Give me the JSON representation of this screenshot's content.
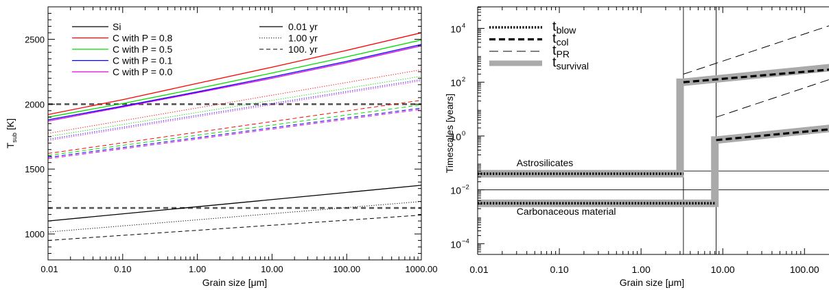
{
  "chart_data": [
    {
      "type": "line",
      "xlabel": "Grain size [μm]",
      "ylabel_main": "T",
      "ylabel_sub": "sub",
      "ylabel_unit": " [K]",
      "x_scale": "log",
      "xlim": [
        0.01,
        1000
      ],
      "ylim": [
        800,
        2750
      ],
      "x_ticks": [
        {
          "v": 0.01,
          "label": "0.01"
        },
        {
          "v": 0.1,
          "label": "0.10"
        },
        {
          "v": 1,
          "label": "1.00"
        },
        {
          "v": 10,
          "label": "10.00"
        },
        {
          "v": 100,
          "label": "100.00"
        },
        {
          "v": 1000,
          "label": "1000.00"
        }
      ],
      "y_ticks": [
        {
          "v": 1000,
          "label": "1000"
        },
        {
          "v": 1500,
          "label": "1500"
        },
        {
          "v": 2000,
          "label": "2000"
        },
        {
          "v": 2500,
          "label": "2500"
        }
      ],
      "legend_materials": [
        {
          "label": "Si",
          "color": "#000000"
        },
        {
          "label": "C with P = 0.8",
          "color": "#ff0000"
        },
        {
          "label": "C with P = 0.5",
          "color": "#00dd00"
        },
        {
          "label": "C with P = 0.1",
          "color": "#0000ff"
        },
        {
          "label": "C with P = 0.0",
          "color": "#dd00dd"
        }
      ],
      "legend_times": [
        {
          "label": "0.01 yr",
          "style": "solid"
        },
        {
          "label": "1.00 yr",
          "style": "dotted"
        },
        {
          "label": "100. yr",
          "style": "dashed"
        }
      ],
      "series": [
        {
          "material": "Si",
          "time": "0.01 yr",
          "color": "#000000",
          "style": "solid",
          "x": [
            0.01,
            1000
          ],
          "y": [
            1100,
            1375
          ]
        },
        {
          "material": "Si",
          "time": "1.00 yr",
          "color": "#000000",
          "style": "dotted",
          "x": [
            0.01,
            1000
          ],
          "y": [
            1015,
            1250
          ]
        },
        {
          "material": "Si",
          "time": "100. yr",
          "color": "#000000",
          "style": "dashed",
          "x": [
            0.01,
            1000
          ],
          "y": [
            950,
            1145
          ]
        },
        {
          "material": "C with P = 0.8",
          "time": "0.01 yr",
          "color": "#ff0000",
          "style": "solid",
          "x": [
            0.01,
            0.1,
            1,
            10,
            100,
            1000
          ],
          "y": [
            1920,
            2035,
            2160,
            2285,
            2415,
            2550
          ]
        },
        {
          "material": "C with P = 0.5",
          "time": "0.01 yr",
          "color": "#00dd00",
          "style": "solid",
          "x": [
            0.01,
            0.1,
            1,
            10,
            100,
            1000
          ],
          "y": [
            1900,
            2005,
            2120,
            2240,
            2365,
            2495
          ]
        },
        {
          "material": "C with P = 0.1",
          "time": "0.01 yr",
          "color": "#0000ff",
          "style": "solid",
          "x": [
            0.01,
            0.1,
            1,
            10,
            100,
            1000
          ],
          "y": [
            1880,
            1985,
            2095,
            2210,
            2330,
            2460
          ]
        },
        {
          "material": "C with P = 0.0",
          "time": "0.01 yr",
          "color": "#dd00dd",
          "style": "solid",
          "x": [
            0.01,
            0.1,
            1,
            10,
            100,
            1000
          ],
          "y": [
            1870,
            1978,
            2088,
            2200,
            2320,
            2450
          ]
        },
        {
          "material": "C with P = 0.8",
          "time": "1.00 yr",
          "color": "#ff0000",
          "style": "dotted",
          "x": [
            0.01,
            1000
          ],
          "y": [
            1775,
            2265
          ]
        },
        {
          "material": "C with P = 0.5",
          "time": "1.00 yr",
          "color": "#00dd00",
          "style": "dotted",
          "x": [
            0.01,
            1000
          ],
          "y": [
            1750,
            2215
          ]
        },
        {
          "material": "C with P = 0.1",
          "time": "1.00 yr",
          "color": "#0000ff",
          "style": "dotted",
          "x": [
            0.01,
            1000
          ],
          "y": [
            1730,
            2190
          ]
        },
        {
          "material": "C with P = 0.0",
          "time": "1.00 yr",
          "color": "#dd00dd",
          "style": "dotted",
          "x": [
            0.01,
            1000
          ],
          "y": [
            1720,
            2180
          ]
        },
        {
          "material": "C with P = 0.8",
          "time": "100. yr",
          "color": "#ff0000",
          "style": "dashed",
          "x": [
            0.01,
            1000
          ],
          "y": [
            1620,
            2030
          ]
        },
        {
          "material": "C with P = 0.5",
          "time": "100. yr",
          "color": "#00dd00",
          "style": "dashed",
          "x": [
            0.01,
            1000
          ],
          "y": [
            1605,
            1995
          ]
        },
        {
          "material": "C with P = 0.1",
          "time": "100. yr",
          "color": "#0000ff",
          "style": "dashed",
          "x": [
            0.01,
            1000
          ],
          "y": [
            1590,
            1970
          ]
        },
        {
          "material": "C with P = 0.0",
          "time": "100. yr",
          "color": "#dd00dd",
          "style": "dashed",
          "x": [
            0.01,
            1000
          ],
          "y": [
            1580,
            1960
          ]
        }
      ],
      "reference_lines": [
        {
          "y": 2000,
          "color": "#555555",
          "style": "thick-dashed"
        },
        {
          "y": 1200,
          "color": "#555555",
          "style": "thick-dashed"
        }
      ]
    },
    {
      "type": "line",
      "xlabel": "Grain size [μm]",
      "ylabel": "Timescales [years]",
      "x_scale": "log",
      "y_scale": "log",
      "xlim": [
        0.01,
        1000
      ],
      "ylim_log10": [
        -4.4,
        4.8
      ],
      "x_ticks": [
        {
          "v": 0.01,
          "label": "0.01"
        },
        {
          "v": 0.1,
          "label": "0.10"
        },
        {
          "v": 1,
          "label": "1.00"
        },
        {
          "v": 10,
          "label": "10.00"
        },
        {
          "v": 100,
          "label": "100.00"
        }
      ],
      "y_ticks": [
        {
          "exp": -4,
          "base": "10",
          "sup": "−4"
        },
        {
          "exp": -2,
          "base": "10",
          "sup": "−2"
        },
        {
          "exp": 0,
          "base": "10",
          "sup": "0"
        },
        {
          "exp": 2,
          "base": "10",
          "sup": "2"
        },
        {
          "exp": 4,
          "base": "10",
          "sup": "4"
        }
      ],
      "legend": [
        {
          "main": "t",
          "sub": "blow",
          "style": "dotted-thick"
        },
        {
          "main": "t",
          "sub": "col",
          "style": "dashed-thick"
        },
        {
          "main": "t",
          "sub": "PR",
          "style": "dashed-thin"
        },
        {
          "main": "t",
          "sub": "survival",
          "style": "gray-band"
        }
      ],
      "annotations": [
        {
          "text": "Astrosilicates",
          "x": 0.03,
          "y_log10": -1.0
        },
        {
          "text": "Carbonaceous material",
          "x": 0.03,
          "y_log10": -2.8
        }
      ],
      "horizontal_lines_log10": [
        -1.3,
        -2.0
      ],
      "vertical_lines_x": [
        3.3,
        8.3
      ],
      "series": [
        {
          "name": "t_survival",
          "material": "Astrosilicates",
          "style": "gray-band",
          "x": [
            0.01,
            3.0,
            3.0,
            3.3,
            1000
          ],
          "y_log10": [
            -1.4,
            -1.4,
            2.0,
            2.0,
            2.75
          ]
        },
        {
          "name": "t_survival",
          "material": "Carbonaceous material",
          "style": "gray-band",
          "x": [
            0.01,
            8.0,
            8.0,
            8.3,
            1000
          ],
          "y_log10": [
            -2.5,
            -2.5,
            -0.15,
            -0.15,
            0.5
          ]
        },
        {
          "name": "t_blow",
          "material": "Astrosilicates",
          "style": "dotted-thick",
          "x": [
            0.01,
            3.3
          ],
          "y_log10": [
            -1.4,
            -1.4
          ]
        },
        {
          "name": "t_blow",
          "material": "Carbonaceous material",
          "style": "dotted-thick",
          "x": [
            0.01,
            8.3
          ],
          "y_log10": [
            -2.5,
            -2.5
          ]
        },
        {
          "name": "t_col",
          "material": "Astrosilicates",
          "style": "dashed-thick",
          "x": [
            3.3,
            1000
          ],
          "y_log10": [
            2.0,
            2.65
          ]
        },
        {
          "name": "t_col",
          "material": "Carbonaceous material",
          "style": "dashed-thick",
          "x": [
            8.3,
            1000
          ],
          "y_log10": [
            -0.15,
            0.45
          ]
        },
        {
          "name": "t_PR",
          "material": "Astrosilicates",
          "style": "dashed-thin",
          "x": [
            3.3,
            1000
          ],
          "y_log10": [
            2.3,
            4.8
          ]
        },
        {
          "name": "t_PR",
          "material": "Carbonaceous material",
          "style": "dashed-thin",
          "x": [
            8.3,
            1000
          ],
          "y_log10": [
            0.7,
            2.8
          ]
        }
      ]
    }
  ]
}
